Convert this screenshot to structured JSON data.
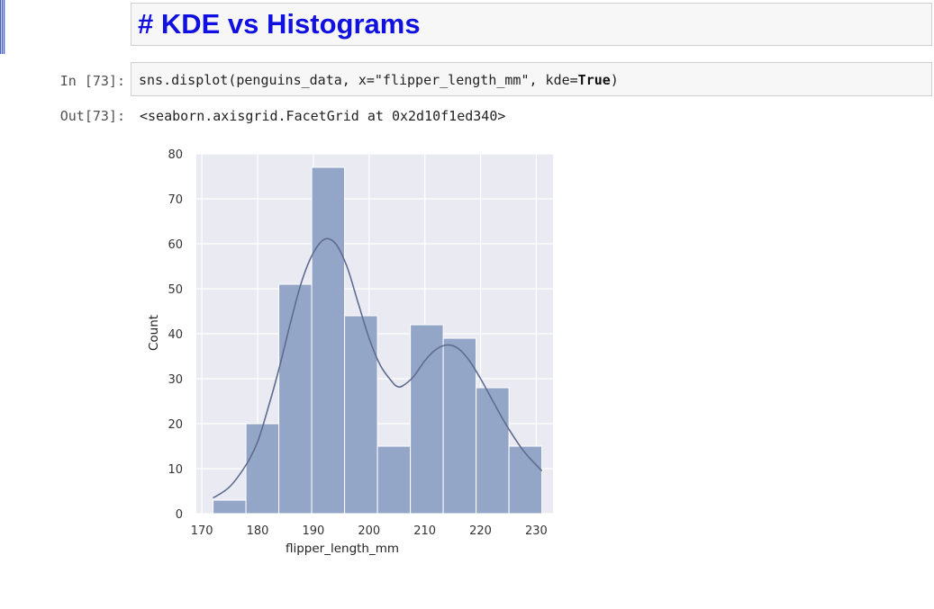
{
  "markdown_cell": {
    "title": "# KDE vs Histograms"
  },
  "code_cell": {
    "prompt": "In [73]:",
    "code_prefix": "sns.displot(penguins_data, x=\"flipper_length_mm\", kde=",
    "code_keyword": "True",
    "code_suffix": ")"
  },
  "output_cell": {
    "prompt": "Out[73]:",
    "text": "<seaborn.axisgrid.FacetGrid at 0x2d10f1ed340>"
  },
  "colors": {
    "bar": "#94a6c8",
    "kde": "#5e6c8e",
    "plot_bg": "#eaeaf2",
    "grid": "#ffffff",
    "title": "#1010e0"
  },
  "chart_data": {
    "type": "bar",
    "xlabel": "flipper_length_mm",
    "ylabel": "Count",
    "xlim": [
      169,
      233
    ],
    "ylim": [
      0,
      80
    ],
    "xticks": [
      170,
      180,
      190,
      200,
      210,
      220,
      230
    ],
    "yticks": [
      0,
      10,
      20,
      30,
      40,
      50,
      60,
      70,
      80
    ],
    "grid": true,
    "bins": [
      {
        "x0": 172.0,
        "x1": 177.9,
        "count": 3
      },
      {
        "x0": 177.9,
        "x1": 183.8,
        "count": 20
      },
      {
        "x0": 183.8,
        "x1": 189.7,
        "count": 51
      },
      {
        "x0": 189.7,
        "x1": 195.6,
        "count": 77
      },
      {
        "x0": 195.6,
        "x1": 201.5,
        "count": 44
      },
      {
        "x0": 201.5,
        "x1": 207.4,
        "count": 15
      },
      {
        "x0": 207.4,
        "x1": 213.3,
        "count": 42
      },
      {
        "x0": 213.3,
        "x1": 219.2,
        "count": 39
      },
      {
        "x0": 219.2,
        "x1": 225.1,
        "count": 28
      },
      {
        "x0": 225.1,
        "x1": 231.0,
        "count": 15
      }
    ],
    "kde": {
      "x": [
        172,
        175,
        178,
        180,
        182,
        184,
        186,
        188,
        190,
        192,
        194,
        196,
        198,
        200,
        202,
        204,
        205,
        206,
        208,
        210,
        212,
        214,
        216,
        218,
        220,
        222,
        224,
        226,
        228,
        231
      ],
      "y": [
        3.5,
        6,
        11,
        16,
        24,
        33,
        43,
        52,
        58,
        61,
        60,
        55,
        47,
        39,
        33,
        29.5,
        28.3,
        28.4,
        30.5,
        34,
        36.5,
        37.5,
        36.7,
        34,
        30,
        25.5,
        21,
        17,
        13.5,
        9.5
      ]
    }
  }
}
